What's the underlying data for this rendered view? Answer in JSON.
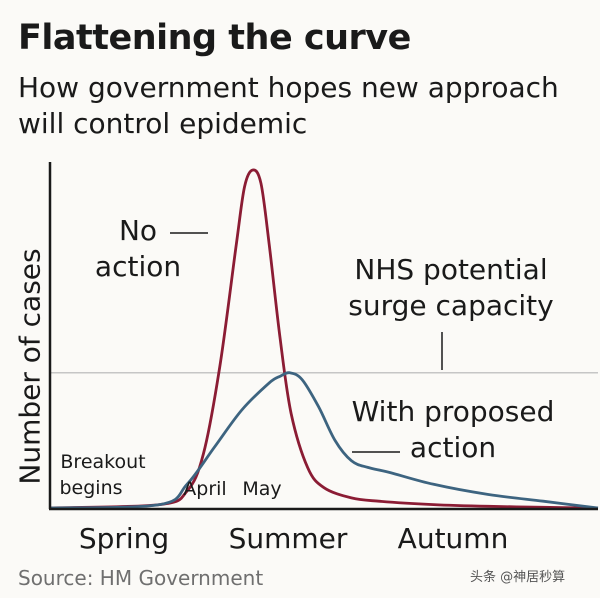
{
  "header": {
    "title": "Flattening the curve",
    "subtitle": "How government hopes new approach will control epidemic"
  },
  "footer": {
    "source": "Source: HM Government",
    "watermark": "头条 @神居秒算"
  },
  "colors": {
    "no_action": "#8b1c34",
    "proposed": "#3d6480",
    "capacity_line": "#b5b5b5",
    "axis": "#1a1a1a"
  },
  "chart_data": {
    "type": "line",
    "title": "Flattening the curve",
    "subtitle": "How government hopes new approach will control epidemic",
    "xlabel": "",
    "ylabel": "Number of cases",
    "x_tick_labels": [
      "Spring",
      "Summer",
      "Autumn"
    ],
    "x_domain": [
      0,
      100
    ],
    "ylim": [
      0,
      100
    ],
    "grid": false,
    "series": [
      {
        "name": "No action",
        "x": [
          0,
          20,
          25,
          28,
          31,
          34,
          35.5,
          37,
          38.5,
          40,
          42,
          44,
          47,
          50,
          55,
          60,
          70,
          80,
          90,
          100
        ],
        "y": [
          0,
          1,
          5,
          16,
          42,
          78,
          95,
          100,
          96,
          78,
          50,
          28,
          12,
          6,
          3,
          2,
          1,
          0.5,
          0.2,
          0
        ]
      },
      {
        "name": "With proposed action",
        "x": [
          0,
          20,
          25,
          30,
          35,
          40,
          42,
          43.8,
          46,
          49,
          52,
          55,
          58,
          62,
          70,
          80,
          90,
          100
        ],
        "y": [
          0,
          1,
          7,
          18,
          29,
          37,
          39,
          40,
          38,
          30,
          20,
          14,
          12,
          10.5,
          7,
          4,
          2,
          0
        ]
      }
    ],
    "reference_line": {
      "label": "NHS potential surge capacity",
      "y": 40
    },
    "annotations": [
      {
        "label": "No action",
        "lines": [
          "No",
          "action"
        ]
      },
      {
        "label": "NHS potential surge capacity",
        "lines": [
          "NHS potential",
          "surge capacity"
        ]
      },
      {
        "label": "With proposed action",
        "lines": [
          "With proposed",
          "action"
        ]
      },
      {
        "label": "Breakout begins",
        "lines": [
          "Breakout",
          "begins"
        ]
      },
      {
        "label": "April",
        "lines": [
          "April"
        ]
      },
      {
        "label": "May",
        "lines": [
          "May"
        ]
      }
    ]
  }
}
